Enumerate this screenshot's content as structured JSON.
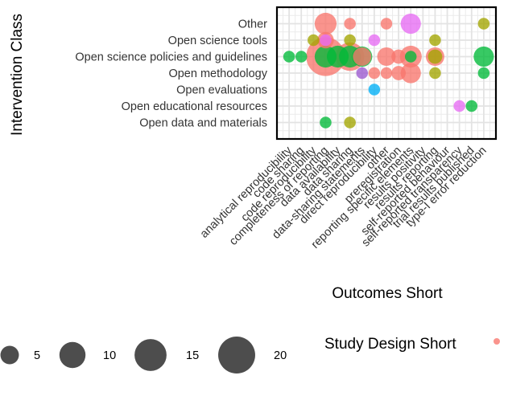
{
  "chart_data": {
    "type": "scatter",
    "xlabel": "Outcomes Short",
    "ylabel": "Intervention Class",
    "x_categories": [
      "analytical reproducibility",
      "code sharing",
      "code reproducibility",
      "completeness of reporting",
      "data availability",
      "data sharing",
      "data-sharing statements",
      "direct reproducibility",
      "other",
      "preregistration",
      "reporting specific elements",
      "results positivity",
      "results reporting",
      "self-reported behaviour",
      "self-reported transparency",
      "trial results published",
      "type-I error reduction"
    ],
    "y_categories": [
      "Open data and materials",
      "Open educational resources",
      "Open evaluations",
      "Open methodology",
      "Open science policies and guidelines",
      "Open science tools",
      "Other"
    ],
    "size_legend": {
      "breaks": [
        5,
        10,
        15,
        20
      ],
      "color": "#4d4d4d"
    },
    "color_legend": {
      "title": "Study Design Short",
      "entries": [
        ""
      ]
    },
    "grid": true,
    "points": [
      {
        "x": "completeness of reporting",
        "y": "Other",
        "n": 7,
        "color": "#F8766D"
      },
      {
        "x": "data sharing",
        "y": "Other",
        "n": 2,
        "color": "#F8766D"
      },
      {
        "x": "other",
        "y": "Other",
        "n": 2,
        "color": "#F8766D"
      },
      {
        "x": "reporting specific elements",
        "y": "Other",
        "n": 6,
        "color": "#E76BF3"
      },
      {
        "x": "type-I error reduction",
        "y": "Other",
        "n": 2,
        "color": "#A3A500"
      },
      {
        "x": "code reproducibility",
        "y": "Open science tools",
        "n": 2,
        "color": "#A3A500"
      },
      {
        "x": "completeness of reporting",
        "y": "Open science tools",
        "n": 2,
        "color": "#E76BF3"
      },
      {
        "x": "completeness of reporting",
        "y": "Open science tools",
        "n": 4,
        "color": "#F8766D"
      },
      {
        "x": "data sharing",
        "y": "Open science tools",
        "n": 2,
        "color": "#A3A500"
      },
      {
        "x": "direct reproducibility",
        "y": "Open science tools",
        "n": 2,
        "color": "#E76BF3"
      },
      {
        "x": "results reporting",
        "y": "Open science tools",
        "n": 2,
        "color": "#A3A500"
      },
      {
        "x": "analytical reproducibility",
        "y": "Open science policies and guidelines",
        "n": 2,
        "color": "#00BA38"
      },
      {
        "x": "code sharing",
        "y": "Open science policies and guidelines",
        "n": 2,
        "color": "#00BA38"
      },
      {
        "x": "completeness of reporting",
        "y": "Open science policies and guidelines",
        "n": 22,
        "color": "#F8766D"
      },
      {
        "x": "completeness of reporting",
        "y": "Open science policies and guidelines",
        "n": 7,
        "color": "#00BA38"
      },
      {
        "x": "data availability",
        "y": "Open science policies and guidelines",
        "n": 7,
        "color": "#00BA38"
      },
      {
        "x": "data sharing",
        "y": "Open science policies and guidelines",
        "n": 12,
        "color": "#F8766D"
      },
      {
        "x": "data sharing",
        "y": "Open science policies and guidelines",
        "n": 7,
        "color": "#00BA38"
      },
      {
        "x": "data-sharing statements",
        "y": "Open science policies and guidelines",
        "n": 6,
        "color": "#00BA38"
      },
      {
        "x": "data-sharing statements",
        "y": "Open science policies and guidelines",
        "n": 5,
        "color": "#F8766D"
      },
      {
        "x": "other",
        "y": "Open science policies and guidelines",
        "n": 5,
        "color": "#F8766D"
      },
      {
        "x": "preregistration",
        "y": "Open science policies and guidelines",
        "n": 3,
        "color": "#F8766D"
      },
      {
        "x": "reporting specific elements",
        "y": "Open science policies and guidelines",
        "n": 7,
        "color": "#F8766D"
      },
      {
        "x": "reporting specific elements",
        "y": "Open science policies and guidelines",
        "n": 2,
        "color": "#00BA38"
      },
      {
        "x": "results reporting",
        "y": "Open science policies and guidelines",
        "n": 5,
        "color": "#F8766D"
      },
      {
        "x": "results reporting",
        "y": "Open science policies and guidelines",
        "n": 3,
        "color": "#A3A500"
      },
      {
        "x": "type-I error reduction",
        "y": "Open science policies and guidelines",
        "n": 6,
        "color": "#00BA38"
      },
      {
        "x": "data-sharing statements",
        "y": "Open methodology",
        "n": 2,
        "color": "#9B59D0"
      },
      {
        "x": "direct reproducibility",
        "y": "Open methodology",
        "n": 2,
        "color": "#F8766D"
      },
      {
        "x": "other",
        "y": "Open methodology",
        "n": 2,
        "color": "#F8766D"
      },
      {
        "x": "preregistration",
        "y": "Open methodology",
        "n": 3,
        "color": "#F8766D"
      },
      {
        "x": "reporting specific elements",
        "y": "Open methodology",
        "n": 6,
        "color": "#F8766D"
      },
      {
        "x": "results reporting",
        "y": "Open methodology",
        "n": 2,
        "color": "#A3A500"
      },
      {
        "x": "type-I error reduction",
        "y": "Open methodology",
        "n": 2,
        "color": "#00BA38"
      },
      {
        "x": "direct reproducibility",
        "y": "Open evaluations",
        "n": 2,
        "color": "#00B0F6"
      },
      {
        "x": "self-reported transparency",
        "y": "Open educational resources",
        "n": 2,
        "color": "#E76BF3"
      },
      {
        "x": "trial results published",
        "y": "Open educational resources",
        "n": 2,
        "color": "#00BA38"
      },
      {
        "x": "completeness of reporting",
        "y": "Open data and materials",
        "n": 2,
        "color": "#00BA38"
      },
      {
        "x": "data sharing",
        "y": "Open data and materials",
        "n": 2,
        "color": "#A3A500"
      }
    ]
  }
}
